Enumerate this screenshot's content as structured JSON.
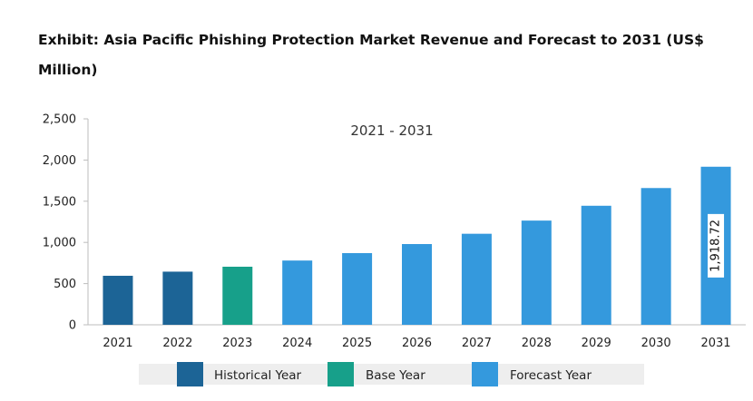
{
  "chart_data": {
    "type": "bar",
    "title": "Exhibit: Asia Pacific Phishing Protection Market Revenue and Forecast to 2031 (US$ Million)",
    "subtitle": "2021 - 2031",
    "xlabel": "",
    "ylabel": "",
    "ylim": [
      0,
      2500
    ],
    "yticks": [
      0,
      500,
      1000,
      1500,
      2000,
      2500
    ],
    "ytick_labels": [
      "0",
      "500",
      "1,000",
      "1,500",
      "2,000",
      "2,500"
    ],
    "grid": false,
    "legend_position": "bottom",
    "categories": [
      "2021",
      "2022",
      "2023",
      "2024",
      "2025",
      "2026",
      "2027",
      "2028",
      "2029",
      "2030",
      "2031"
    ],
    "values": [
      595,
      645,
      705,
      780,
      870,
      980,
      1105,
      1265,
      1445,
      1660,
      1918.72
    ],
    "bar_types": [
      "historical",
      "historical",
      "base",
      "forecast",
      "forecast",
      "forecast",
      "forecast",
      "forecast",
      "forecast",
      "forecast",
      "forecast"
    ],
    "data_labels": [
      {
        "category": "2031",
        "text": "1,918.72"
      }
    ],
    "legend": [
      {
        "key": "historical",
        "label": "Historical Year",
        "color": "#1c6496"
      },
      {
        "key": "base",
        "label": "Base Year",
        "color": "#17a08a"
      },
      {
        "key": "forecast",
        "label": "Forecast Year",
        "color": "#3499dd"
      }
    ]
  }
}
